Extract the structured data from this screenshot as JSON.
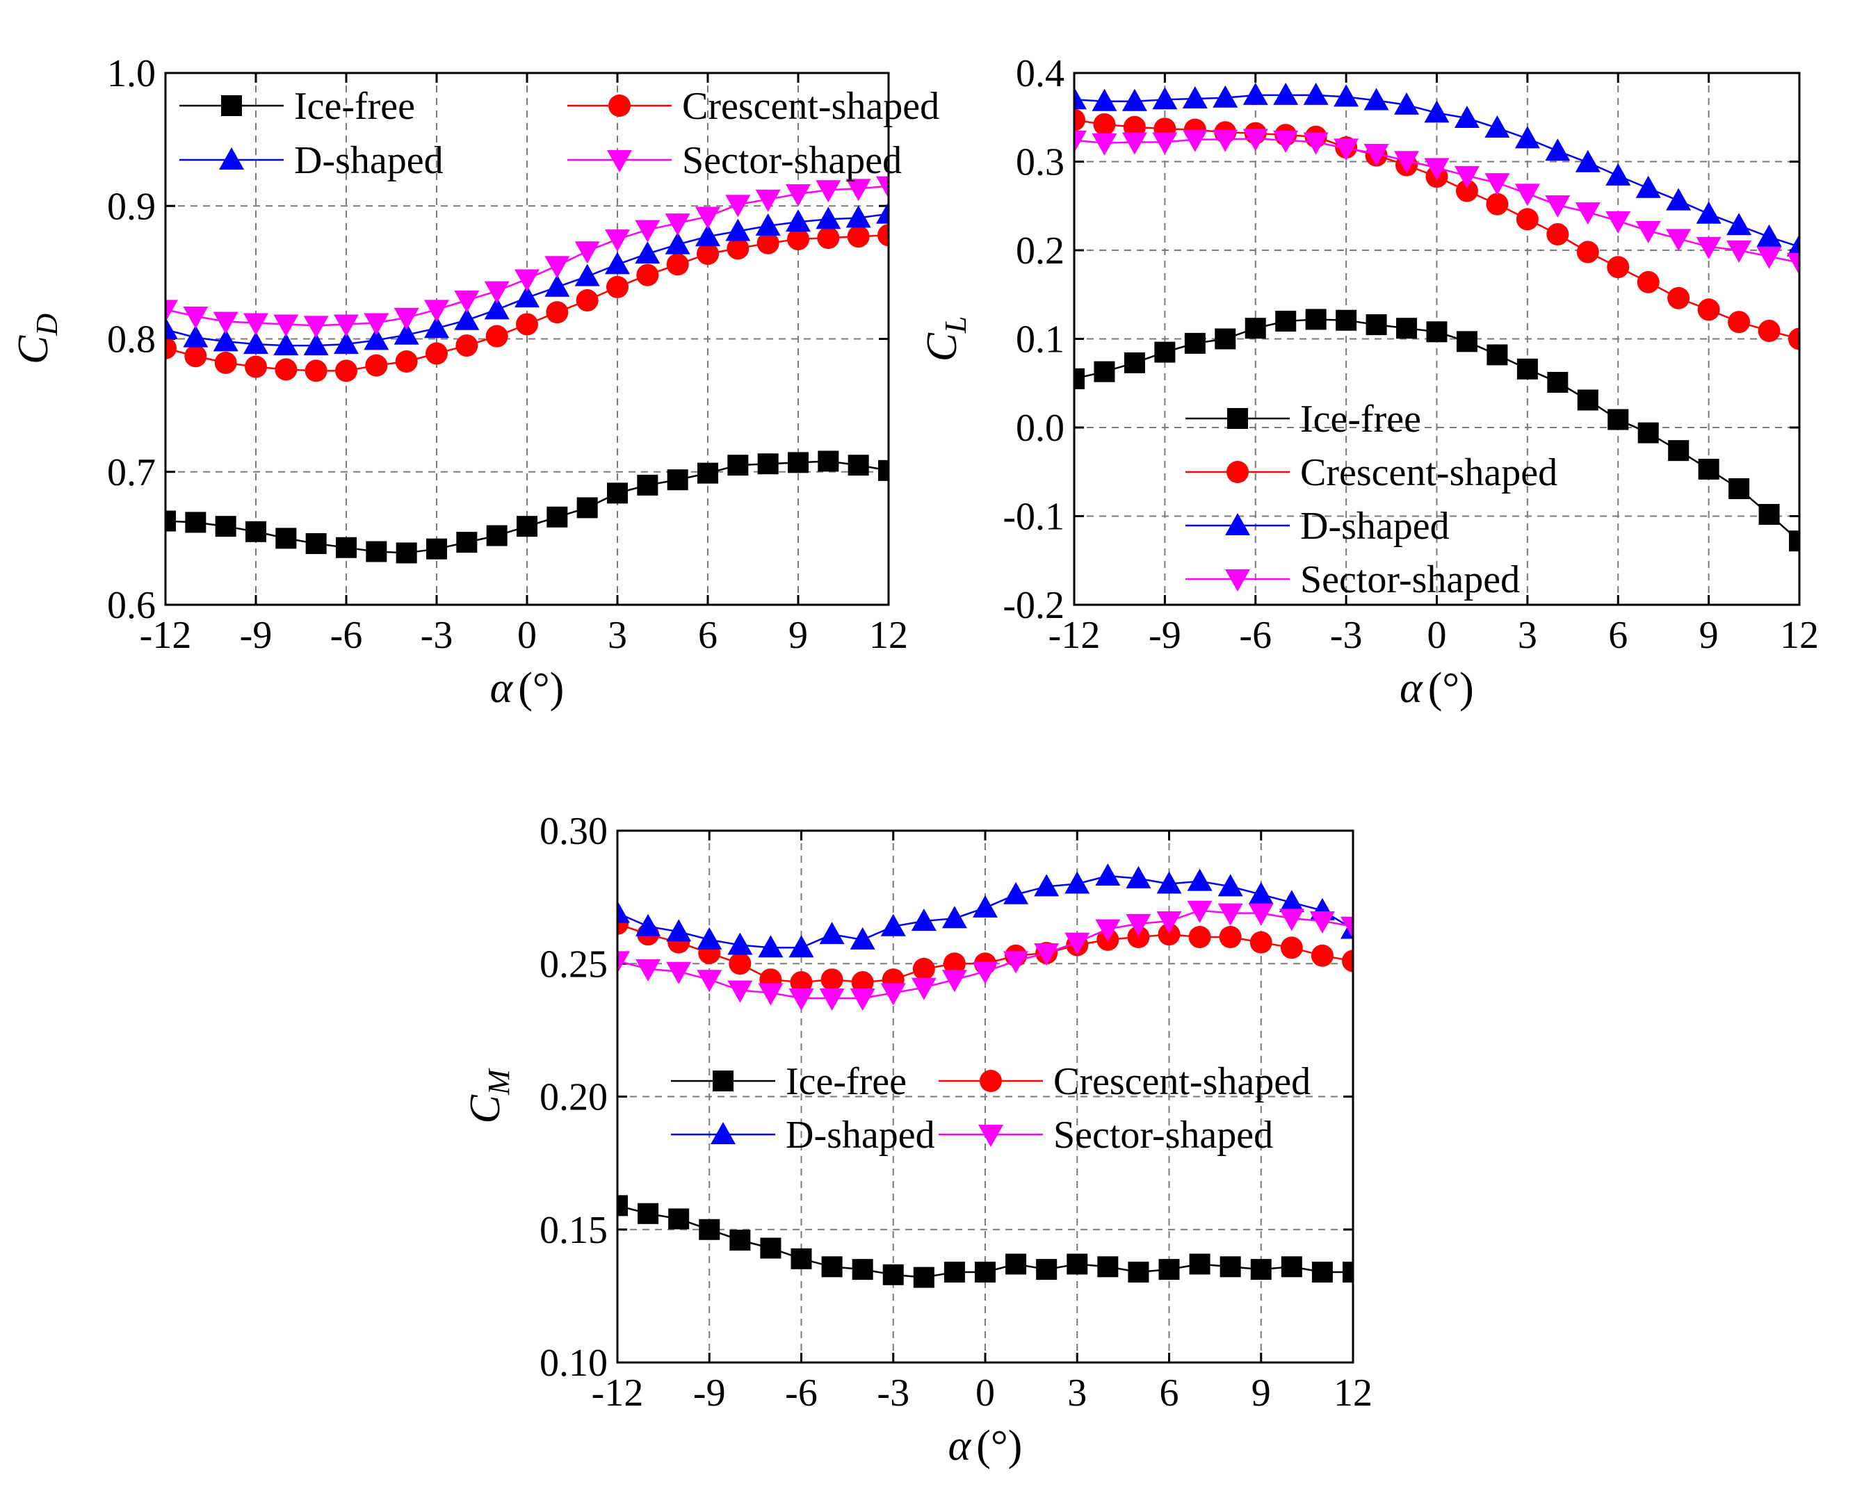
{
  "chart_data": [
    {
      "type": "line",
      "id": "cd",
      "ylabel_main": "C",
      "ylabel_sub": "D",
      "xlabel_symbol": "α",
      "xlabel_unit": "(°)",
      "xlim": [
        -12,
        12
      ],
      "ylim": [
        0.6,
        1.0
      ],
      "xticks": [
        "-12",
        "-9",
        "-6",
        "-3",
        "0",
        "3",
        "6",
        "9",
        "12"
      ],
      "yticks": [
        "0.6",
        "0.7",
        "0.8",
        "0.9",
        "1.0"
      ],
      "grid": true,
      "legend_position": "top",
      "x": [
        -12,
        -11,
        -10,
        -9,
        -8,
        -7,
        -6,
        -5,
        -4,
        -3,
        -2,
        -1,
        0,
        1,
        2,
        3,
        4,
        5,
        6,
        7,
        8,
        9,
        10,
        11,
        12
      ],
      "series": [
        {
          "name": "Ice-free",
          "color": "#000000",
          "marker": "square",
          "values": [
            0.663,
            0.662,
            0.659,
            0.655,
            0.65,
            0.646,
            0.643,
            0.64,
            0.639,
            0.642,
            0.647,
            0.652,
            0.659,
            0.666,
            0.673,
            0.684,
            0.69,
            0.694,
            0.699,
            0.705,
            0.706,
            0.707,
            0.708,
            0.705,
            0.701
          ]
        },
        {
          "name": "Crescent-shaped",
          "color": "#ff0000",
          "marker": "circle",
          "values": [
            0.793,
            0.787,
            0.782,
            0.779,
            0.777,
            0.776,
            0.776,
            0.78,
            0.783,
            0.789,
            0.795,
            0.802,
            0.811,
            0.82,
            0.829,
            0.839,
            0.848,
            0.856,
            0.864,
            0.868,
            0.872,
            0.875,
            0.876,
            0.877,
            0.878
          ]
        },
        {
          "name": "D-shaped",
          "color": "#0000ff",
          "marker": "triangle-up",
          "values": [
            0.807,
            0.801,
            0.798,
            0.796,
            0.795,
            0.795,
            0.796,
            0.799,
            0.803,
            0.808,
            0.814,
            0.822,
            0.831,
            0.839,
            0.847,
            0.856,
            0.864,
            0.871,
            0.877,
            0.881,
            0.885,
            0.888,
            0.89,
            0.891,
            0.894
          ]
        },
        {
          "name": "Sector-shaped",
          "color": "#ff00ff",
          "marker": "triangle-down",
          "values": [
            0.822,
            0.817,
            0.813,
            0.812,
            0.811,
            0.81,
            0.811,
            0.812,
            0.816,
            0.822,
            0.829,
            0.836,
            0.845,
            0.855,
            0.866,
            0.875,
            0.882,
            0.887,
            0.892,
            0.901,
            0.905,
            0.909,
            0.912,
            0.913,
            0.915
          ]
        }
      ]
    },
    {
      "type": "line",
      "id": "cl",
      "ylabel_main": "C",
      "ylabel_sub": "L",
      "xlabel_symbol": "α",
      "xlabel_unit": "(°)",
      "xlim": [
        -12,
        12
      ],
      "ylim": [
        -0.2,
        0.4
      ],
      "xticks": [
        "-12",
        "-9",
        "-6",
        "-3",
        "0",
        "3",
        "6",
        "9",
        "12"
      ],
      "yticks": [
        "-0.2",
        "-0.1",
        "0.0",
        "0.1",
        "0.2",
        "0.3",
        "0.4"
      ],
      "grid": true,
      "legend_position": "bottom-left",
      "x": [
        -12,
        -11,
        -10,
        -9,
        -8,
        -7,
        -6,
        -5,
        -4,
        -3,
        -2,
        -1,
        0,
        1,
        2,
        3,
        4,
        5,
        6,
        7,
        8,
        9,
        10,
        11,
        12
      ],
      "series": [
        {
          "name": "Ice-free",
          "color": "#000000",
          "marker": "square",
          "values": [
            0.055,
            0.063,
            0.073,
            0.085,
            0.095,
            0.1,
            0.112,
            0.12,
            0.122,
            0.121,
            0.116,
            0.112,
            0.108,
            0.097,
            0.082,
            0.066,
            0.051,
            0.031,
            0.009,
            -0.006,
            -0.026,
            -0.047,
            -0.069,
            -0.098,
            -0.128
          ]
        },
        {
          "name": "Crescent-shaped",
          "color": "#ff0000",
          "marker": "circle",
          "values": [
            0.347,
            0.342,
            0.339,
            0.337,
            0.336,
            0.333,
            0.332,
            0.33,
            0.328,
            0.316,
            0.307,
            0.296,
            0.283,
            0.267,
            0.252,
            0.235,
            0.218,
            0.198,
            0.181,
            0.164,
            0.146,
            0.133,
            0.119,
            0.109,
            0.1
          ]
        },
        {
          "name": "D-shaped",
          "color": "#0000ff",
          "marker": "triangle-up",
          "values": [
            0.37,
            0.368,
            0.368,
            0.37,
            0.371,
            0.372,
            0.375,
            0.375,
            0.375,
            0.373,
            0.369,
            0.364,
            0.355,
            0.349,
            0.338,
            0.326,
            0.312,
            0.299,
            0.284,
            0.27,
            0.256,
            0.241,
            0.228,
            0.215,
            0.204
          ]
        },
        {
          "name": "Sector-shaped",
          "color": "#ff00ff",
          "marker": "triangle-down",
          "values": [
            0.324,
            0.321,
            0.322,
            0.322,
            0.325,
            0.325,
            0.326,
            0.324,
            0.322,
            0.315,
            0.309,
            0.301,
            0.293,
            0.284,
            0.276,
            0.264,
            0.251,
            0.243,
            0.233,
            0.222,
            0.213,
            0.204,
            0.2,
            0.193,
            0.186
          ]
        }
      ],
      "legend_entries_raw": [
        "Ice-free",
        "Crescent-shaped",
        "D-shaped",
        "Sector-shaped"
      ]
    },
    {
      "type": "line",
      "id": "cm",
      "ylabel_main": "C",
      "ylabel_sub": "M",
      "xlabel_symbol": "α",
      "xlabel_unit": "(°)",
      "xlim": [
        -12,
        12
      ],
      "ylim": [
        0.1,
        0.3
      ],
      "xticks": [
        "-12",
        "-9",
        "-6",
        "-3",
        "0",
        "3",
        "6",
        "9",
        "12"
      ],
      "yticks": [
        "0.10",
        "0.15",
        "0.20",
        "0.25",
        "0.30"
      ],
      "grid": true,
      "legend_position": "middle",
      "x": [
        -12,
        -11,
        -10,
        -9,
        -8,
        -7,
        -6,
        -5,
        -4,
        -3,
        -2,
        -1,
        0,
        1,
        2,
        3,
        4,
        5,
        6,
        7,
        8,
        9,
        10,
        11,
        12
      ],
      "series": [
        {
          "name": "Ice-free",
          "color": "#000000",
          "marker": "square",
          "values": [
            0.159,
            0.156,
            0.154,
            0.15,
            0.146,
            0.143,
            0.139,
            0.136,
            0.135,
            0.133,
            0.132,
            0.134,
            0.134,
            0.137,
            0.135,
            0.137,
            0.136,
            0.134,
            0.135,
            0.137,
            0.136,
            0.135,
            0.136,
            0.134,
            0.134
          ]
        },
        {
          "name": "Crescent-shaped",
          "color": "#ff0000",
          "marker": "circle",
          "values": [
            0.265,
            0.261,
            0.258,
            0.254,
            0.25,
            0.244,
            0.243,
            0.244,
            0.243,
            0.244,
            0.248,
            0.25,
            0.25,
            0.253,
            0.254,
            0.257,
            0.259,
            0.26,
            0.261,
            0.26,
            0.26,
            0.258,
            0.256,
            0.253,
            0.251
          ]
        },
        {
          "name": "D-shaped",
          "color": "#0000ff",
          "marker": "triangle-up",
          "values": [
            0.269,
            0.264,
            0.262,
            0.259,
            0.257,
            0.256,
            0.256,
            0.261,
            0.259,
            0.264,
            0.266,
            0.267,
            0.271,
            0.276,
            0.279,
            0.28,
            0.283,
            0.282,
            0.28,
            0.281,
            0.279,
            0.276,
            0.273,
            0.27,
            0.263
          ]
        },
        {
          "name": "Sector-shaped",
          "color": "#ff00ff",
          "marker": "triangle-down",
          "values": [
            0.251,
            0.248,
            0.247,
            0.244,
            0.24,
            0.239,
            0.237,
            0.237,
            0.237,
            0.239,
            0.241,
            0.244,
            0.247,
            0.251,
            0.254,
            0.258,
            0.263,
            0.265,
            0.266,
            0.27,
            0.269,
            0.269,
            0.267,
            0.266,
            0.264
          ]
        }
      ]
    }
  ]
}
